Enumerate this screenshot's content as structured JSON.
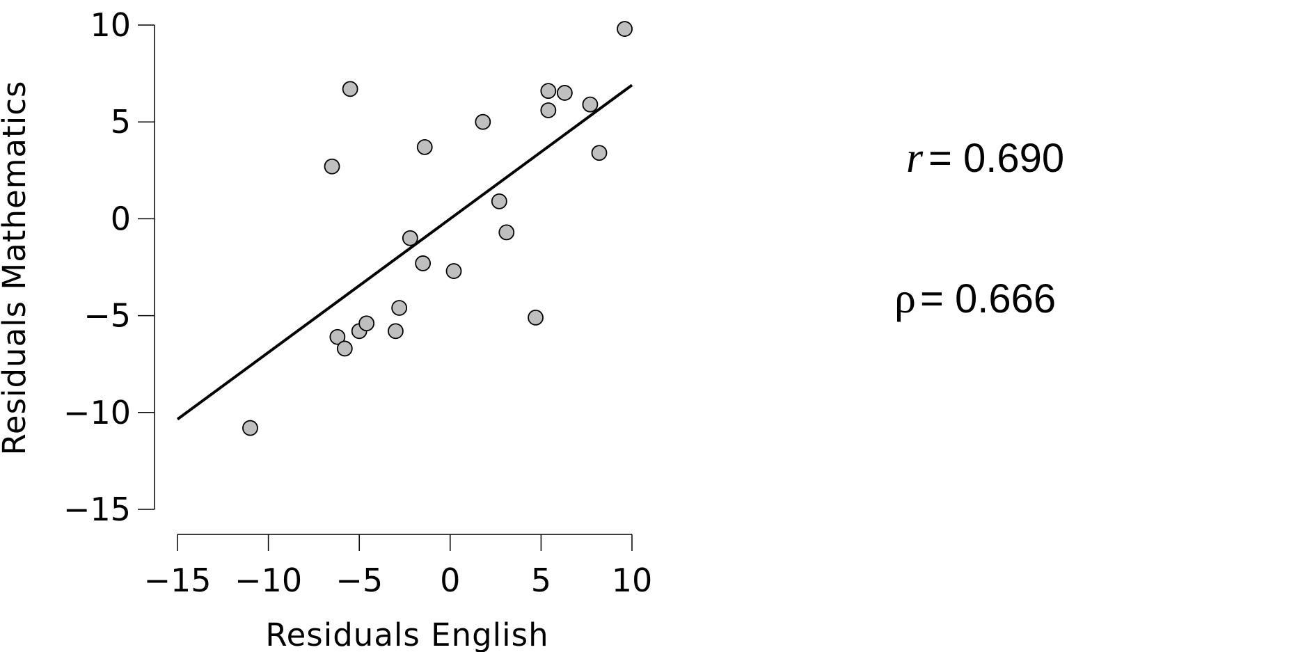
{
  "chart_data": {
    "type": "scatter",
    "xlabel": "Residuals English",
    "ylabel": "Residuals Mathematics",
    "xlim": [
      -15,
      10
    ],
    "ylim": [
      -15,
      10
    ],
    "xticks": [
      -15,
      -10,
      -5,
      0,
      5,
      10
    ],
    "yticks": [
      -15,
      -10,
      -5,
      0,
      5,
      10
    ],
    "xtick_labels": [
      "−15",
      "−10",
      "−5",
      "0",
      "5",
      "10"
    ],
    "ytick_labels": [
      "−15",
      "−10",
      "−5",
      "0",
      "5",
      "10"
    ],
    "points": [
      {
        "x": -11.0,
        "y": -10.8
      },
      {
        "x": -6.5,
        "y": 2.7
      },
      {
        "x": -5.5,
        "y": 6.7
      },
      {
        "x": -6.2,
        "y": -6.1
      },
      {
        "x": -5.8,
        "y": -6.7
      },
      {
        "x": -5.0,
        "y": -5.8
      },
      {
        "x": -4.6,
        "y": -5.4
      },
      {
        "x": -3.0,
        "y": -5.8
      },
      {
        "x": -2.8,
        "y": -4.6
      },
      {
        "x": -2.2,
        "y": -1.0
      },
      {
        "x": -1.5,
        "y": -2.3
      },
      {
        "x": -1.4,
        "y": 3.7
      },
      {
        "x": 0.2,
        "y": -2.7
      },
      {
        "x": 1.8,
        "y": 5.0
      },
      {
        "x": 2.7,
        "y": 0.9
      },
      {
        "x": 3.1,
        "y": -0.7
      },
      {
        "x": 4.7,
        "y": -5.1
      },
      {
        "x": 5.4,
        "y": 5.6
      },
      {
        "x": 5.4,
        "y": 6.6
      },
      {
        "x": 6.3,
        "y": 6.5
      },
      {
        "x": 7.7,
        "y": 5.9
      },
      {
        "x": 8.2,
        "y": 3.4
      },
      {
        "x": 9.6,
        "y": 9.8
      }
    ],
    "fit_line": {
      "x": [
        -15,
        10
      ],
      "y": [
        -10.35,
        6.9
      ]
    },
    "point_color": "#bfbfbf",
    "point_edge_color": "#000000",
    "line_color": "#000000",
    "grid": false
  },
  "stats": {
    "pearson_symbol": "r",
    "pearson_value": "= 0.690",
    "spearman_symbol": "ρ",
    "spearman_value": "= 0.666"
  }
}
